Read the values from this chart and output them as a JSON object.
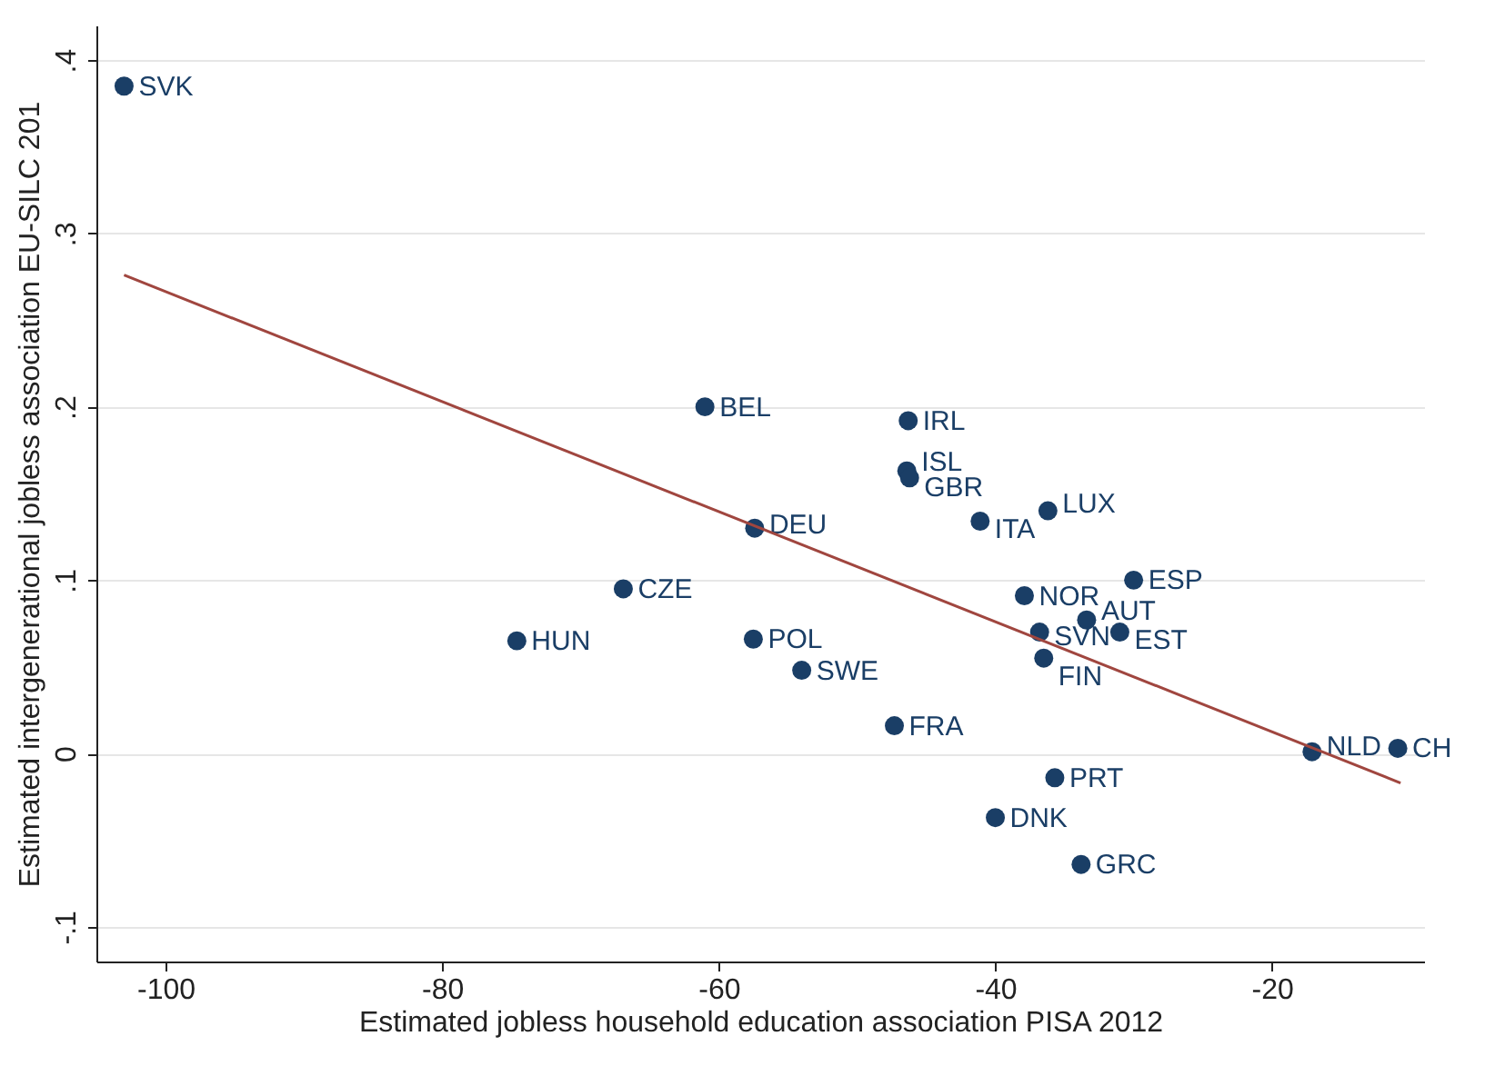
{
  "chart_data": {
    "type": "scatter",
    "xlabel": "Estimated jobless household education association PISA 2012",
    "ylabel": "Estimated intergenerational jobless association EU-SILC 201",
    "xlim": [
      -105,
      -9
    ],
    "xticks": [
      -100,
      -80,
      -60,
      -40,
      -20
    ],
    "ylim": [
      -0.12,
      0.42
    ],
    "yticks": [
      {
        "value": -0.1,
        "label": "-.1"
      },
      {
        "value": 0,
        "label": "0"
      },
      {
        "value": 0.1,
        "label": ".1"
      },
      {
        "value": 0.2,
        "label": ".2"
      },
      {
        "value": 0.3,
        "label": ".3"
      },
      {
        "value": 0.4,
        "label": ".4"
      }
    ],
    "grid": "y",
    "marker": "circle",
    "series": [
      {
        "type": "scatter",
        "color": "#1a3e66",
        "x": [
          -103.0,
          -61.0,
          -46.3,
          -46.4,
          -46.2,
          -41.1,
          -36.2,
          -57.4,
          -66.9,
          -30.0,
          -37.9,
          -33.4,
          -31.0,
          -36.8,
          -36.5,
          -74.6,
          -57.5,
          -54.0,
          -47.3,
          -17.1,
          -10.9,
          -35.7,
          -40.0,
          -33.8
        ],
        "values": [
          0.385,
          0.2,
          0.192,
          0.163,
          0.159,
          0.134,
          0.14,
          0.13,
          0.095,
          0.1,
          0.091,
          0.077,
          0.07,
          0.07,
          0.055,
          0.065,
          0.066,
          0.048,
          0.016,
          0.001,
          0.003,
          -0.014,
          -0.037,
          -0.064
        ],
        "value_labels": [
          "SVK",
          "BEL",
          "IRL",
          "ISL",
          "GBR",
          "ITA",
          "LUX",
          "DEU",
          "CZE",
          "ESP",
          "NOR",
          "AUT",
          "EST",
          "SVN",
          "FIN",
          "HUN",
          "POL",
          "SWE",
          "FRA",
          "NLD",
          "CH",
          "PRT",
          "DNK",
          "GRC"
        ]
      },
      {
        "type": "line",
        "color": "#a0463f",
        "line_style": "solid",
        "marker": "none",
        "x": [
          -103.0,
          -10.7
        ],
        "values": [
          0.276,
          -0.017
        ]
      }
    ]
  }
}
